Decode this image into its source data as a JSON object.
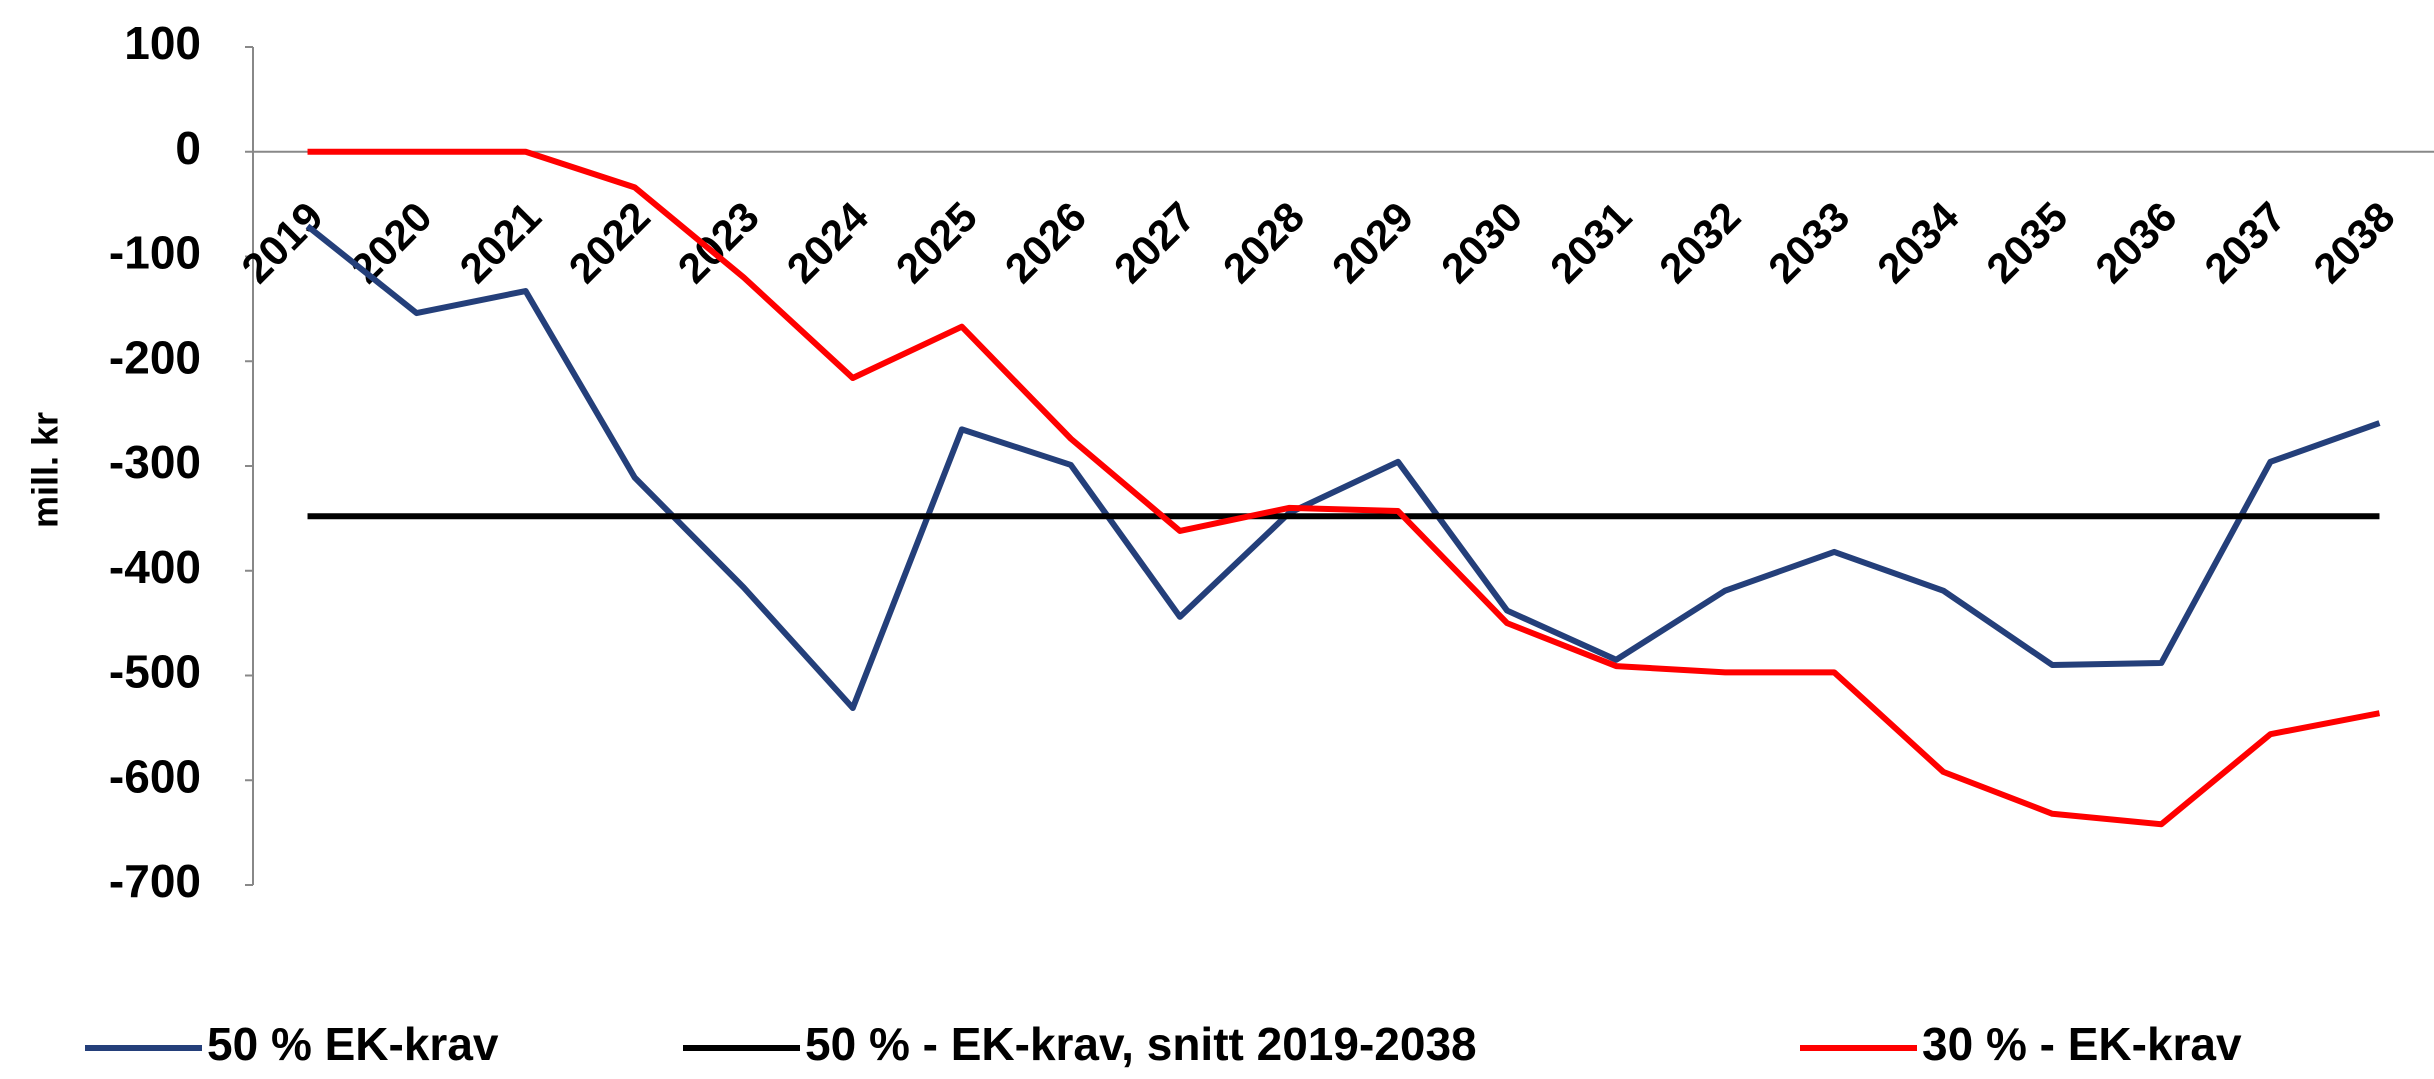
{
  "chart_data": {
    "type": "line",
    "y_label": "mill. kr",
    "categories": [
      "2019",
      "2020",
      "2021",
      "2022",
      "2023",
      "2024",
      "2025",
      "2026",
      "2027",
      "2028",
      "2029",
      "2030",
      "2031",
      "2032",
      "2033",
      "2034",
      "2035",
      "2036",
      "2037",
      "2038"
    ],
    "series": [
      {
        "name": "50 % EK-krav",
        "color": "#243f7a",
        "values": [
          -71,
          -154,
          -133,
          -311,
          -416,
          -531,
          -265,
          -299,
          -444,
          -345,
          -296,
          -438,
          -485,
          -419,
          -382,
          -419,
          -490,
          -488,
          -296,
          -259
        ]
      },
      {
        "name": "50 % -  EK-krav, snitt 2019-2038",
        "color": "#000000",
        "values": [
          -348,
          -348,
          -348,
          -348,
          -348,
          -348,
          -348,
          -348,
          -348,
          -348,
          -348,
          -348,
          -348,
          -348,
          -348,
          -348,
          -348,
          -348,
          -348,
          -348
        ]
      },
      {
        "name": "30 % - EK-krav",
        "color": "#ff0000",
        "values": [
          0,
          0,
          0,
          -34,
          -120,
          -216,
          -167,
          -274,
          -362,
          -340,
          -343,
          -450,
          -491,
          -497,
          -497,
          -592,
          -632,
          -642,
          -556,
          -536
        ]
      }
    ],
    "ylim": [
      -700,
      100
    ],
    "yticks": [
      100,
      0,
      -100,
      -200,
      -300,
      -400,
      -500,
      -600,
      -700
    ],
    "legend": "bottom"
  }
}
